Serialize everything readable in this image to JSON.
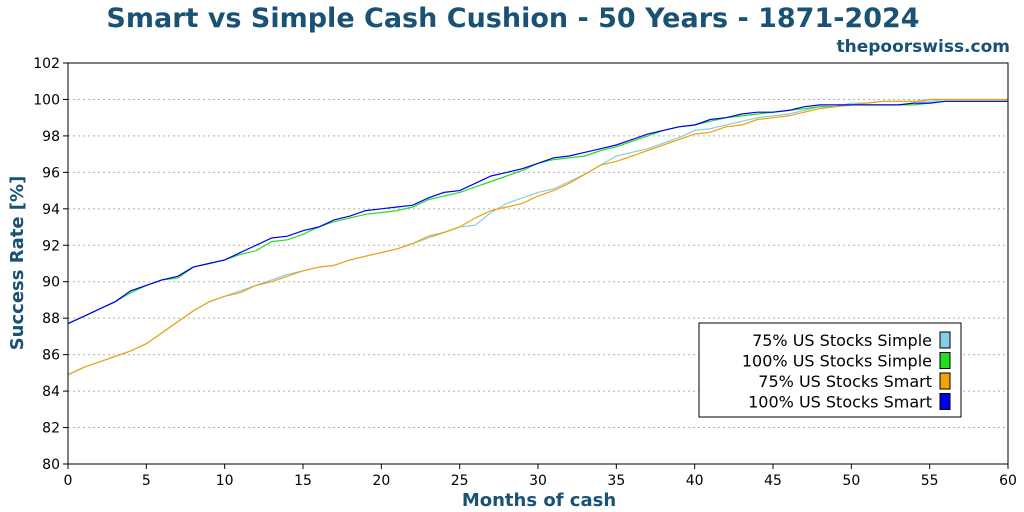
{
  "site_name": "thepoorswiss.com",
  "chart_data": {
    "type": "line",
    "title": "Smart vs Simple Cash Cushion - 50 Years - 1871-2024",
    "xlabel": "Months of cash",
    "ylabel": "Success Rate [%]",
    "xlim": [
      0,
      60
    ],
    "ylim": [
      80,
      102
    ],
    "xticks": [
      0,
      5,
      10,
      15,
      20,
      25,
      30,
      35,
      40,
      45,
      50,
      55,
      60
    ],
    "yticks": [
      80,
      82,
      84,
      86,
      88,
      90,
      92,
      94,
      96,
      98,
      100,
      102
    ],
    "grid": "horizontal dotted",
    "legend_position": "lower-right",
    "x": [
      0,
      1,
      2,
      3,
      4,
      5,
      6,
      7,
      8,
      9,
      10,
      11,
      12,
      13,
      14,
      15,
      16,
      17,
      18,
      19,
      20,
      21,
      22,
      23,
      24,
      25,
      26,
      27,
      28,
      29,
      30,
      31,
      32,
      33,
      34,
      35,
      36,
      37,
      38,
      39,
      40,
      41,
      42,
      43,
      44,
      45,
      46,
      47,
      48,
      49,
      50,
      51,
      52,
      53,
      54,
      55,
      56,
      57,
      58,
      59,
      60
    ],
    "series": [
      {
        "name": "75% US Stocks Simple",
        "color": "#87cde6",
        "values": [
          84.9,
          85.3,
          85.6,
          85.9,
          86.2,
          86.6,
          87.2,
          87.8,
          88.4,
          88.9,
          89.2,
          89.5,
          89.8,
          90.1,
          90.4,
          90.6,
          90.8,
          90.9,
          91.2,
          91.4,
          91.6,
          91.8,
          92.1,
          92.4,
          92.7,
          93.0,
          93.1,
          93.8,
          94.3,
          94.6,
          94.9,
          95.1,
          95.5,
          95.9,
          96.4,
          96.9,
          97.1,
          97.3,
          97.6,
          97.9,
          98.3,
          98.4,
          98.6,
          98.8,
          99.0,
          99.1,
          99.2,
          99.4,
          99.6,
          99.6,
          99.8,
          99.8,
          99.9,
          99.9,
          99.9,
          99.9,
          100.0,
          100.0,
          100.0,
          100.0,
          100.0
        ]
      },
      {
        "name": "100% US Stocks Simple",
        "color": "#22dd22",
        "values": [
          87.7,
          88.1,
          88.5,
          88.9,
          89.4,
          89.8,
          90.1,
          90.2,
          90.8,
          91.0,
          91.2,
          91.5,
          91.7,
          92.2,
          92.3,
          92.6,
          93.0,
          93.3,
          93.5,
          93.7,
          93.8,
          93.9,
          94.1,
          94.5,
          94.7,
          94.9,
          95.2,
          95.5,
          95.8,
          96.1,
          96.5,
          96.7,
          96.8,
          96.9,
          97.2,
          97.4,
          97.7,
          98.0,
          98.3,
          98.5,
          98.6,
          98.8,
          99.0,
          99.1,
          99.2,
          99.3,
          99.4,
          99.5,
          99.6,
          99.6,
          99.7,
          99.7,
          99.7,
          99.7,
          99.7,
          99.8,
          99.9,
          99.9,
          99.9,
          99.9,
          99.9
        ]
      },
      {
        "name": "75% US Stocks Smart",
        "color": "#f0a30a",
        "values": [
          84.9,
          85.3,
          85.6,
          85.9,
          86.2,
          86.6,
          87.2,
          87.8,
          88.4,
          88.9,
          89.2,
          89.4,
          89.8,
          90.0,
          90.3,
          90.6,
          90.8,
          90.9,
          91.2,
          91.4,
          91.6,
          91.8,
          92.1,
          92.5,
          92.7,
          93.0,
          93.5,
          93.9,
          94.1,
          94.3,
          94.7,
          95.0,
          95.4,
          95.9,
          96.4,
          96.6,
          96.9,
          97.2,
          97.5,
          97.8,
          98.1,
          98.2,
          98.5,
          98.6,
          98.9,
          99.0,
          99.1,
          99.3,
          99.5,
          99.6,
          99.7,
          99.8,
          99.9,
          99.9,
          99.9,
          100.0,
          100.0,
          100.0,
          100.0,
          100.0,
          100.0
        ]
      },
      {
        "name": "100% US Stocks Smart",
        "color": "#0000ee",
        "values": [
          87.7,
          88.1,
          88.5,
          88.9,
          89.5,
          89.8,
          90.1,
          90.3,
          90.8,
          91.0,
          91.2,
          91.6,
          92.0,
          92.4,
          92.5,
          92.8,
          93.0,
          93.4,
          93.6,
          93.9,
          94.0,
          94.1,
          94.2,
          94.6,
          94.9,
          95.0,
          95.4,
          95.8,
          96.0,
          96.2,
          96.5,
          96.8,
          96.9,
          97.1,
          97.3,
          97.5,
          97.8,
          98.1,
          98.3,
          98.5,
          98.6,
          98.9,
          99.0,
          99.2,
          99.3,
          99.3,
          99.4,
          99.6,
          99.7,
          99.7,
          99.7,
          99.7,
          99.7,
          99.7,
          99.8,
          99.8,
          99.9,
          99.9,
          99.9,
          99.9,
          99.9
        ]
      }
    ]
  }
}
